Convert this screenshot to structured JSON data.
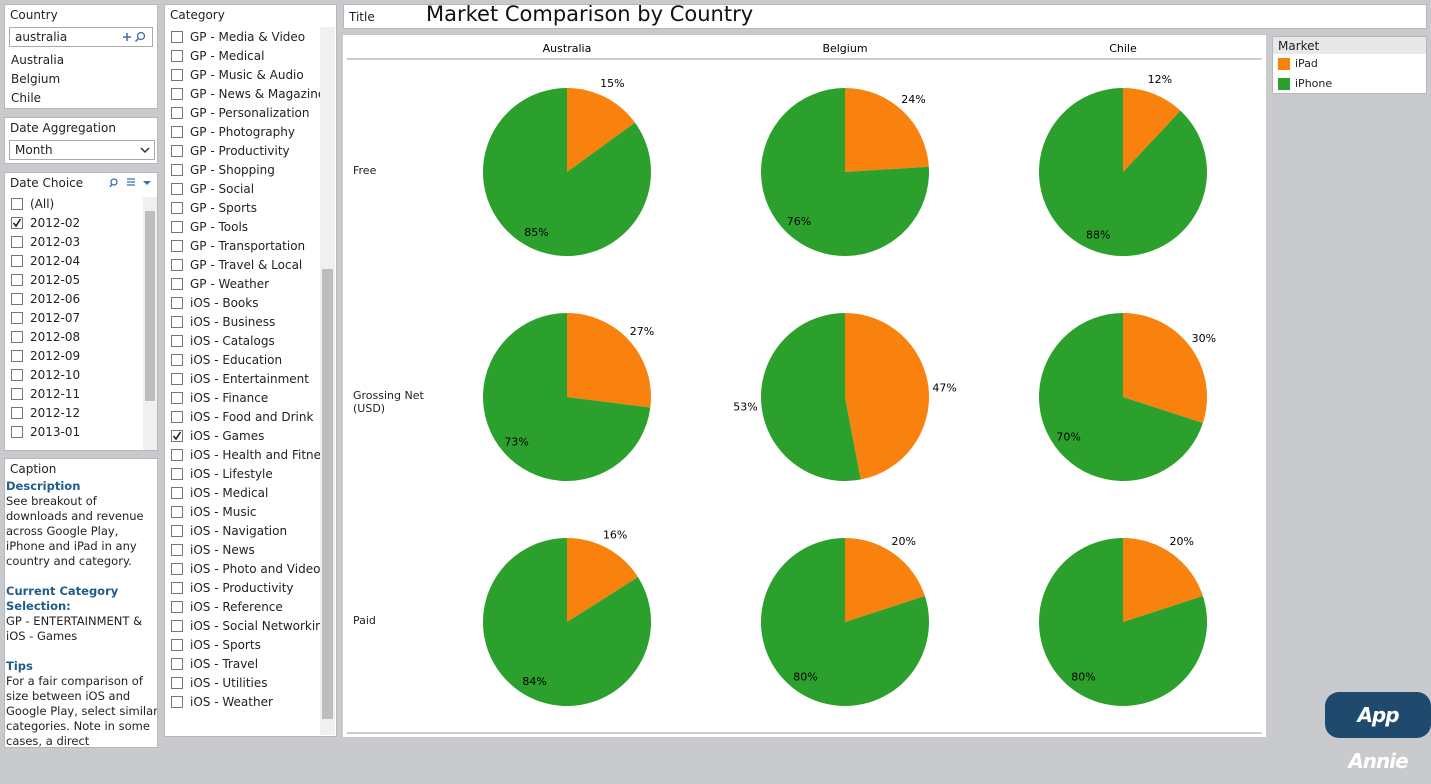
{
  "country_filter": {
    "title": "Country",
    "search": "australia",
    "items": [
      "Australia",
      "Belgium",
      "Chile"
    ]
  },
  "date_aggregation": {
    "title": "Date Aggregation",
    "selected": "Month"
  },
  "date_choice": {
    "title": "Date Choice",
    "items": [
      {
        "label": "(All)",
        "checked": false
      },
      {
        "label": "2012-02",
        "checked": true
      },
      {
        "label": "2012-03",
        "checked": false
      },
      {
        "label": "2012-04",
        "checked": false
      },
      {
        "label": "2012-05",
        "checked": false
      },
      {
        "label": "2012-06",
        "checked": false
      },
      {
        "label": "2012-07",
        "checked": false
      },
      {
        "label": "2012-08",
        "checked": false
      },
      {
        "label": "2012-09",
        "checked": false
      },
      {
        "label": "2012-10",
        "checked": false
      },
      {
        "label": "2012-11",
        "checked": false
      },
      {
        "label": "2012-12",
        "checked": false
      },
      {
        "label": "2013-01",
        "checked": false
      }
    ]
  },
  "category": {
    "title": "Category",
    "items": [
      {
        "label": "GP - Media & Video",
        "checked": false
      },
      {
        "label": "GP - Medical",
        "checked": false
      },
      {
        "label": "GP - Music & Audio",
        "checked": false
      },
      {
        "label": "GP - News & Magazines",
        "checked": false
      },
      {
        "label": "GP - Personalization",
        "checked": false
      },
      {
        "label": "GP - Photography",
        "checked": false
      },
      {
        "label": "GP - Productivity",
        "checked": false
      },
      {
        "label": "GP - Shopping",
        "checked": false
      },
      {
        "label": "GP - Social",
        "checked": false
      },
      {
        "label": "GP - Sports",
        "checked": false
      },
      {
        "label": "GP - Tools",
        "checked": false
      },
      {
        "label": "GP - Transportation",
        "checked": false
      },
      {
        "label": "GP - Travel & Local",
        "checked": false
      },
      {
        "label": "GP - Weather",
        "checked": false
      },
      {
        "label": "iOS - Books",
        "checked": false
      },
      {
        "label": "iOS - Business",
        "checked": false
      },
      {
        "label": "iOS - Catalogs",
        "checked": false
      },
      {
        "label": "iOS - Education",
        "checked": false
      },
      {
        "label": "iOS - Entertainment",
        "checked": false
      },
      {
        "label": "iOS - Finance",
        "checked": false
      },
      {
        "label": "iOS - Food and Drink",
        "checked": false
      },
      {
        "label": "iOS - Games",
        "checked": true
      },
      {
        "label": "iOS - Health and Fitness",
        "checked": false
      },
      {
        "label": "iOS - Lifestyle",
        "checked": false
      },
      {
        "label": "iOS - Medical",
        "checked": false
      },
      {
        "label": "iOS - Music",
        "checked": false
      },
      {
        "label": "iOS - Navigation",
        "checked": false
      },
      {
        "label": "iOS - News",
        "checked": false
      },
      {
        "label": "iOS - Photo and Video",
        "checked": false
      },
      {
        "label": "iOS - Productivity",
        "checked": false
      },
      {
        "label": "iOS - Reference",
        "checked": false
      },
      {
        "label": "iOS - Social Networking",
        "checked": false
      },
      {
        "label": "iOS - Sports",
        "checked": false
      },
      {
        "label": "iOS - Travel",
        "checked": false
      },
      {
        "label": "iOS - Utilities",
        "checked": false
      },
      {
        "label": "iOS - Weather",
        "checked": false
      }
    ]
  },
  "caption": {
    "title": "Caption",
    "sections": [
      {
        "heading": "Description",
        "text": "See breakout of downloads and revenue across Google Play, iPhone and iPad in any country and category."
      },
      {
        "heading": "Current Category Selection:",
        "text": "GP - ENTERTAINMENT & iOS - Games"
      },
      {
        "heading": "Tips",
        "text": "For a fair comparison of size between iOS and Google Play, select similar categories. Note in some cases, a direct comparison"
      }
    ]
  },
  "title_bar": {
    "label": "Title",
    "title": "Market Comparison by Country"
  },
  "chart_data": {
    "type": "pie",
    "columns": [
      "Australia",
      "Belgium",
      "Chile"
    ],
    "rows": [
      "Free",
      "Grossing Net (USD)",
      "Paid"
    ],
    "legend_title": "Market",
    "series": [
      {
        "name": "iPad",
        "color": "#f9820f",
        "values": [
          15,
          24,
          12,
          27,
          47,
          30,
          16,
          20,
          20
        ],
        "value_labels": [
          "15%",
          "24%",
          "12%",
          "27%",
          "47%",
          "30%",
          "16%",
          "20%",
          "20%"
        ]
      },
      {
        "name": "iPhone",
        "color": "#2ca02c",
        "values": [
          85,
          76,
          88,
          73,
          53,
          70,
          84,
          80,
          80
        ],
        "value_labels": [
          "85%",
          "76%",
          "88%",
          "73%",
          "53%",
          "70%",
          "84%",
          "80%",
          "80%"
        ]
      }
    ]
  },
  "logo": "App Annie"
}
